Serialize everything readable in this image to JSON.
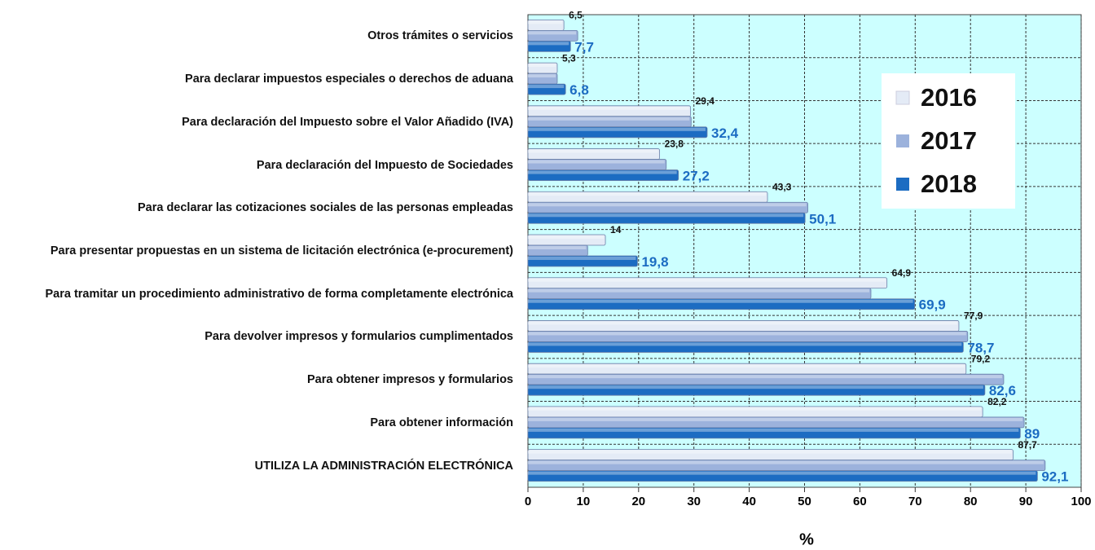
{
  "chart_data": {
    "type": "hbar",
    "categories": [
      "Otros trámites o servicios",
      "Para declarar impuestos especiales o derechos de aduana",
      "Para declaración del Impuesto sobre el Valor Añadido (IVA)",
      "Para declaración del Impuesto de Sociedades",
      "Para declarar las cotizaciones sociales de las personas empleadas",
      "Para presentar propuestas en un sistema de licitación electrónica (e-procurement)",
      "Para tramitar un procedimiento administrativo de forma completamente electrónica",
      "Para devolver impresos y formularios cumplimentados",
      "Para obtener impresos y formularios",
      "Para obtener información",
      "UTILIZA LA ADMINISTRACIÓN ELECTRÓNICA"
    ],
    "series": [
      {
        "name": "2016",
        "color": "#e4ebf6",
        "values": [
          6.5,
          5.3,
          29.4,
          23.8,
          43.3,
          14,
          64.9,
          77.9,
          79.2,
          82.2,
          87.7
        ],
        "value_labels": [
          "6,5",
          "5,3",
          "29,4",
          "23,8",
          "43,3",
          "14",
          "64,9",
          "77,9",
          "79,2",
          "82,2",
          "87,7"
        ]
      },
      {
        "name": "2017",
        "color": "#9cb2dc",
        "values": [
          9,
          5.3,
          29.5,
          25,
          50.6,
          10.8,
          62,
          79.5,
          86,
          89.7,
          93.5
        ]
      },
      {
        "name": "2018",
        "color": "#1c6cc2",
        "values": [
          7.7,
          6.8,
          32.4,
          27.2,
          50.1,
          19.8,
          69.9,
          78.7,
          82.6,
          89,
          92.1
        ],
        "value_labels": [
          "7,7",
          "6,8",
          "32,4",
          "27,2",
          "50,1",
          "19,8",
          "69,9",
          "78,7",
          "82,6",
          "89",
          "92,1"
        ]
      }
    ],
    "xlim": [
      0,
      100
    ],
    "xticks": [
      0,
      10,
      20,
      30,
      40,
      50,
      60,
      70,
      80,
      90,
      100
    ],
    "xlabel": "%",
    "grid": true,
    "legend": "right"
  }
}
